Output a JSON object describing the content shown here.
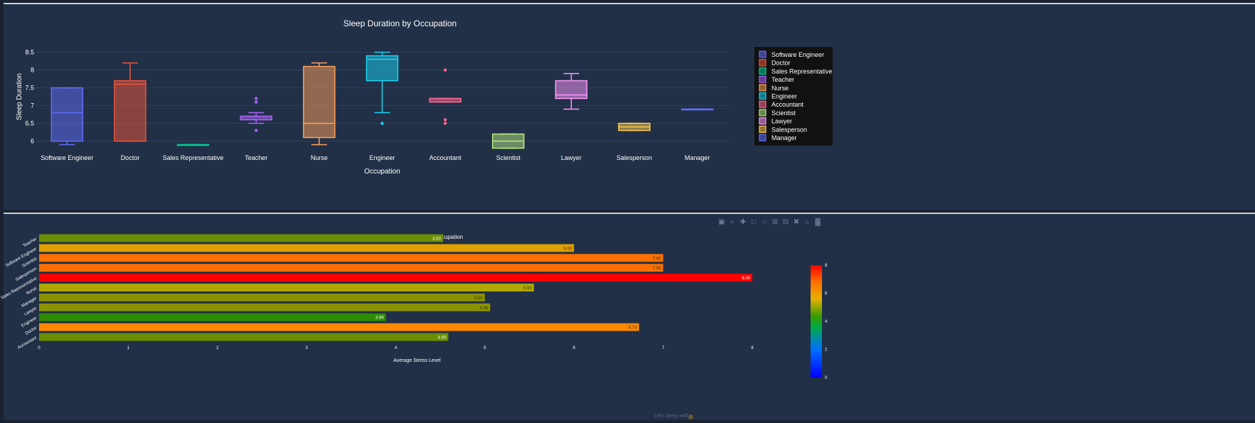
{
  "chart_data": [
    {
      "type": "box",
      "title": "Sleep Duration by Occupation",
      "xlabel": "Occupation",
      "ylabel": "Sleep Duration",
      "ylim": [
        5.75,
        8.75
      ],
      "yticks": [
        6,
        6.5,
        7,
        7.5,
        8,
        8.5
      ],
      "grid": true,
      "legend_placement": "right",
      "categories": [
        "Software Engineer",
        "Doctor",
        "Sales Representative",
        "Teacher",
        "Nurse",
        "Engineer",
        "Accountant",
        "Scientist",
        "Lawyer",
        "Salesperson",
        "Manager"
      ],
      "series": [
        {
          "name": "Software Engineer",
          "color": "#636efa",
          "min": 5.9,
          "q1": 6.0,
          "median": 6.8,
          "q3": 7.5,
          "max": 7.5,
          "outliers": []
        },
        {
          "name": "Doctor",
          "color": "#ef553b",
          "min": 6.0,
          "q1": 6.0,
          "median": 7.6,
          "q3": 7.7,
          "max": 8.2,
          "outliers": []
        },
        {
          "name": "Sales Representative",
          "color": "#00cc96",
          "min": 5.9,
          "q1": 5.9,
          "median": 5.9,
          "q3": 5.9,
          "max": 5.9,
          "outliers": []
        },
        {
          "name": "Teacher",
          "color": "#ab63fa",
          "min": 6.5,
          "q1": 6.6,
          "median": 6.7,
          "q3": 6.7,
          "max": 6.8,
          "outliers": [
            6.3,
            7.1,
            7.2
          ]
        },
        {
          "name": "Nurse",
          "color": "#ffa15a",
          "min": 5.9,
          "q1": 6.1,
          "median": 6.5,
          "q3": 8.1,
          "max": 8.2,
          "outliers": []
        },
        {
          "name": "Engineer",
          "color": "#19d3f3",
          "min": 6.8,
          "q1": 7.7,
          "median": 8.3,
          "q3": 8.4,
          "max": 8.5,
          "outliers": [
            6.5
          ]
        },
        {
          "name": "Accountant",
          "color": "#ff6692",
          "min": 7.1,
          "q1": 7.1,
          "median": 7.2,
          "q3": 7.2,
          "max": 7.2,
          "outliers": [
            6.5,
            6.6,
            8.0
          ]
        },
        {
          "name": "Scientist",
          "color": "#b6e880",
          "min": 5.8,
          "q1": 5.8,
          "median": 6.0,
          "q3": 6.2,
          "max": 6.2,
          "outliers": []
        },
        {
          "name": "Lawyer",
          "color": "#ff97ff",
          "min": 6.9,
          "q1": 7.2,
          "median": 7.3,
          "q3": 7.7,
          "max": 7.9,
          "outliers": []
        },
        {
          "name": "Salesperson",
          "color": "#fecb52",
          "min": 6.3,
          "q1": 6.3,
          "median": 6.4,
          "q3": 6.5,
          "max": 6.5,
          "outliers": []
        },
        {
          "name": "Manager",
          "color": "#636efa",
          "min": 6.9,
          "q1": 6.9,
          "median": 6.9,
          "q3": 6.9,
          "max": 6.9,
          "outliers": []
        }
      ]
    },
    {
      "type": "bar",
      "orientation": "horizontal",
      "title": "Average Stress Level by Occupation",
      "xlabel": "Average Stress Level",
      "ylabel": "",
      "xlim": [
        0,
        8
      ],
      "xticks": [
        0,
        1,
        2,
        3,
        4,
        5,
        6,
        7,
        8
      ],
      "colorscale": "Jet",
      "colorbar_range": [
        0,
        8
      ],
      "colorbar_ticks": [
        0,
        2,
        4,
        6,
        8
      ],
      "categories": [
        "Teacher",
        "Software Engineer",
        "Scientist",
        "Salesperson",
        "Sales Representative",
        "Nurse",
        "Manager",
        "Lawyer",
        "Engineer",
        "Doctor",
        "Accountant"
      ],
      "values": [
        4.53,
        6.0,
        7.0,
        7.0,
        8.0,
        5.55,
        5.0,
        5.06,
        3.89,
        6.73,
        4.59
      ],
      "labels": [
        "4.53",
        "6.00",
        "7.00",
        "7.00",
        "8.00",
        "5.55",
        "5.00",
        "5.06",
        "3.89",
        "6.73",
        "4.59"
      ],
      "colors": [
        "#6b8e00",
        "#e0a000",
        "#ff7000",
        "#ff7000",
        "#ff0000",
        "#b0a800",
        "#8a9200",
        "#8a9200",
        "#2e8c00",
        "#ff8800",
        "#6b8e00"
      ]
    }
  ],
  "footer": {
    "text": "Let's sleep well"
  }
}
